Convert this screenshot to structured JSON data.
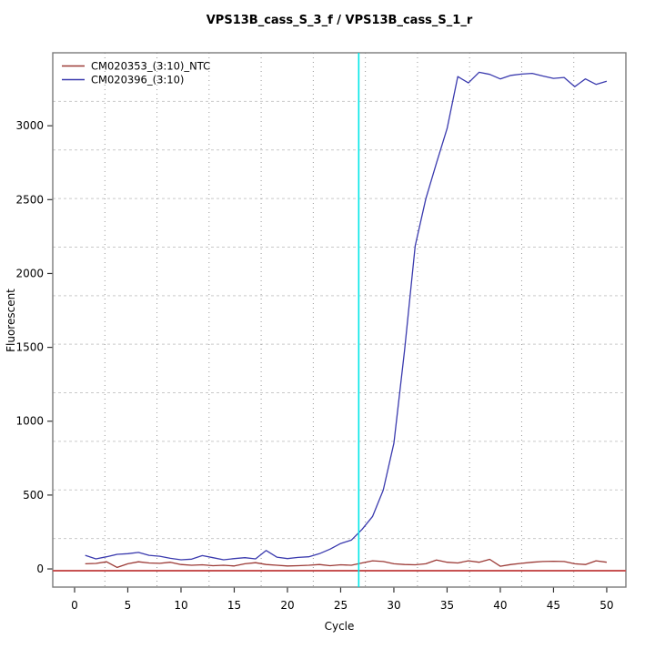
{
  "chart_data": {
    "type": "line",
    "title": "VPS13B_cass_S_3_f / VPS13B_cass_S_1_r",
    "xlabel": "Cycle",
    "ylabel": "Fluorescent",
    "x_ticks": [
      0,
      5,
      10,
      15,
      20,
      25,
      30,
      35,
      40,
      45,
      50
    ],
    "y_ticks": [
      0,
      500,
      1000,
      1500,
      2000,
      2500,
      3000
    ],
    "xlim": [
      -2.05,
      51.8
    ],
    "ylim": [
      -123,
      3494
    ],
    "grid": {
      "divisions": 11,
      "h_style": "dashed",
      "v_style": "dotted"
    },
    "legend_position": "top-left",
    "cycles": [
      1,
      2,
      3,
      4,
      5,
      6,
      7,
      8,
      9,
      10,
      11,
      12,
      13,
      14,
      15,
      16,
      17,
      18,
      19,
      20,
      21,
      22,
      23,
      24,
      25,
      26,
      27,
      28,
      29,
      30,
      31,
      32,
      33,
      34,
      35,
      36,
      37,
      38,
      39,
      40,
      41,
      42,
      43,
      44,
      45,
      46,
      47,
      48,
      49,
      50
    ],
    "series": [
      {
        "name": "CM020353_(3:10)_NTC",
        "color": "#9c3a36",
        "values": [
          35,
          37,
          48,
          10,
          35,
          48,
          40,
          38,
          45,
          30,
          25,
          28,
          22,
          25,
          20,
          35,
          42,
          30,
          25,
          20,
          22,
          25,
          30,
          22,
          28,
          25,
          40,
          55,
          50,
          35,
          30,
          28,
          35,
          60,
          45,
          40,
          55,
          45,
          65,
          18,
          30,
          38,
          45,
          50,
          52,
          50,
          35,
          30,
          55,
          45
        ]
      },
      {
        "name": "CM020396_(3:10)",
        "color": "#3a3aae",
        "values": [
          92,
          68,
          82,
          99,
          103,
          112,
          92,
          86,
          72,
          62,
          66,
          90,
          76,
          62,
          70,
          76,
          68,
          125,
          80,
          70,
          78,
          82,
          103,
          134,
          172,
          195,
          267,
          356,
          534,
          852,
          1479,
          2187,
          2506,
          2748,
          2982,
          3333,
          3290,
          3362,
          3348,
          3317,
          3341,
          3350,
          3355,
          3337,
          3321,
          3327,
          3265,
          3317,
          3280,
          3301
        ]
      }
    ],
    "ct_line": {
      "x": 26.7,
      "color": "#00e6e6"
    },
    "threshold_line": {
      "y": 0,
      "color": "#c75252"
    }
  }
}
